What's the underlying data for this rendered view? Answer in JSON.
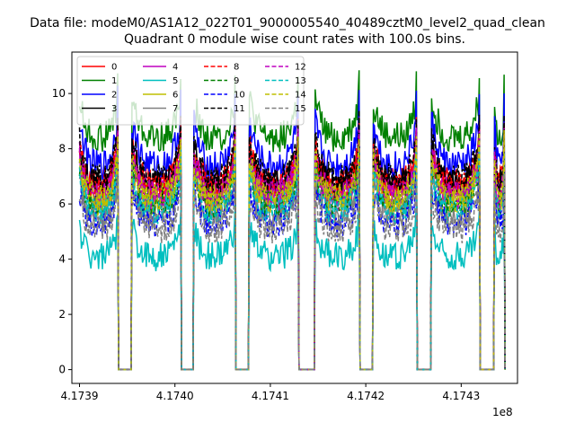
{
  "suptitle": "Data file: modeM0/AS1A12_022T01_9000005540_40489cztM0_level2_quad_clean",
  "chart_data": {
    "type": "line",
    "title": "Quadrant 0 module wise count rates with 100.0s bins.",
    "xlabel": "",
    "ylabel": "",
    "x_offset_label": "1e8",
    "xlim": [
      417389200,
      417435900
    ],
    "ylim": [
      -0.5,
      11.5
    ],
    "xticks": [
      417390000,
      417400000,
      417410000,
      417420000,
      417430000
    ],
    "xtick_labels": [
      "4.1739",
      "4.1740",
      "4.1741",
      "4.1742",
      "4.1743"
    ],
    "yticks": [
      0,
      2,
      4,
      6,
      8,
      10
    ],
    "ytick_labels": [
      "0",
      "2",
      "4",
      "6",
      "8",
      "10"
    ],
    "grid": false,
    "legend_position": "top-left",
    "legend_columns": 4,
    "active_intervals": [
      [
        417390000,
        417394000
      ],
      [
        417395500,
        417400600
      ],
      [
        417402000,
        417406300
      ],
      [
        417407800,
        417412900
      ],
      [
        417414700,
        417419300
      ],
      [
        417420800,
        417425300
      ],
      [
        417426900,
        417431900
      ],
      [
        417433500,
        417434500
      ]
    ],
    "series": [
      {
        "name": "0",
        "color": "#ff0000",
        "dash": "solid",
        "level": 6.8,
        "peak": 9.0
      },
      {
        "name": "1",
        "color": "#008000",
        "dash": "solid",
        "level": 8.4,
        "peak": 10.9
      },
      {
        "name": "2",
        "color": "#0000ff",
        "dash": "solid",
        "level": 7.4,
        "peak": 10.3
      },
      {
        "name": "3",
        "color": "#000000",
        "dash": "solid",
        "level": 6.7,
        "peak": 9.1
      },
      {
        "name": "4",
        "color": "#bf00bf",
        "dash": "solid",
        "level": 6.4,
        "peak": 9.0
      },
      {
        "name": "5",
        "color": "#00bfbf",
        "dash": "solid",
        "level": 4.1,
        "peak": 6.0
      },
      {
        "name": "6",
        "color": "#bfbf00",
        "dash": "solid",
        "level": 6.1,
        "peak": 8.6
      },
      {
        "name": "7",
        "color": "#808080",
        "dash": "solid",
        "level": 5.6,
        "peak": 8.0
      },
      {
        "name": "8",
        "color": "#ff0000",
        "dash": "dashed",
        "level": 6.6,
        "peak": 9.2
      },
      {
        "name": "9",
        "color": "#008000",
        "dash": "dashed",
        "level": 6.0,
        "peak": 8.4
      },
      {
        "name": "10",
        "color": "#0000ff",
        "dash": "dashed",
        "level": 5.3,
        "peak": 7.6
      },
      {
        "name": "11",
        "color": "#000000",
        "dash": "dashed",
        "level": 6.9,
        "peak": 9.4
      },
      {
        "name": "12",
        "color": "#bf00bf",
        "dash": "dashed",
        "level": 6.3,
        "peak": 8.8
      },
      {
        "name": "13",
        "color": "#00bfbf",
        "dash": "dashed",
        "level": 5.8,
        "peak": 8.2
      },
      {
        "name": "14",
        "color": "#bfbf00",
        "dash": "dashed",
        "level": 6.2,
        "peak": 8.7
      },
      {
        "name": "15",
        "color": "#808080",
        "dash": "dashed",
        "level": 5.1,
        "peak": 7.2
      }
    ]
  }
}
